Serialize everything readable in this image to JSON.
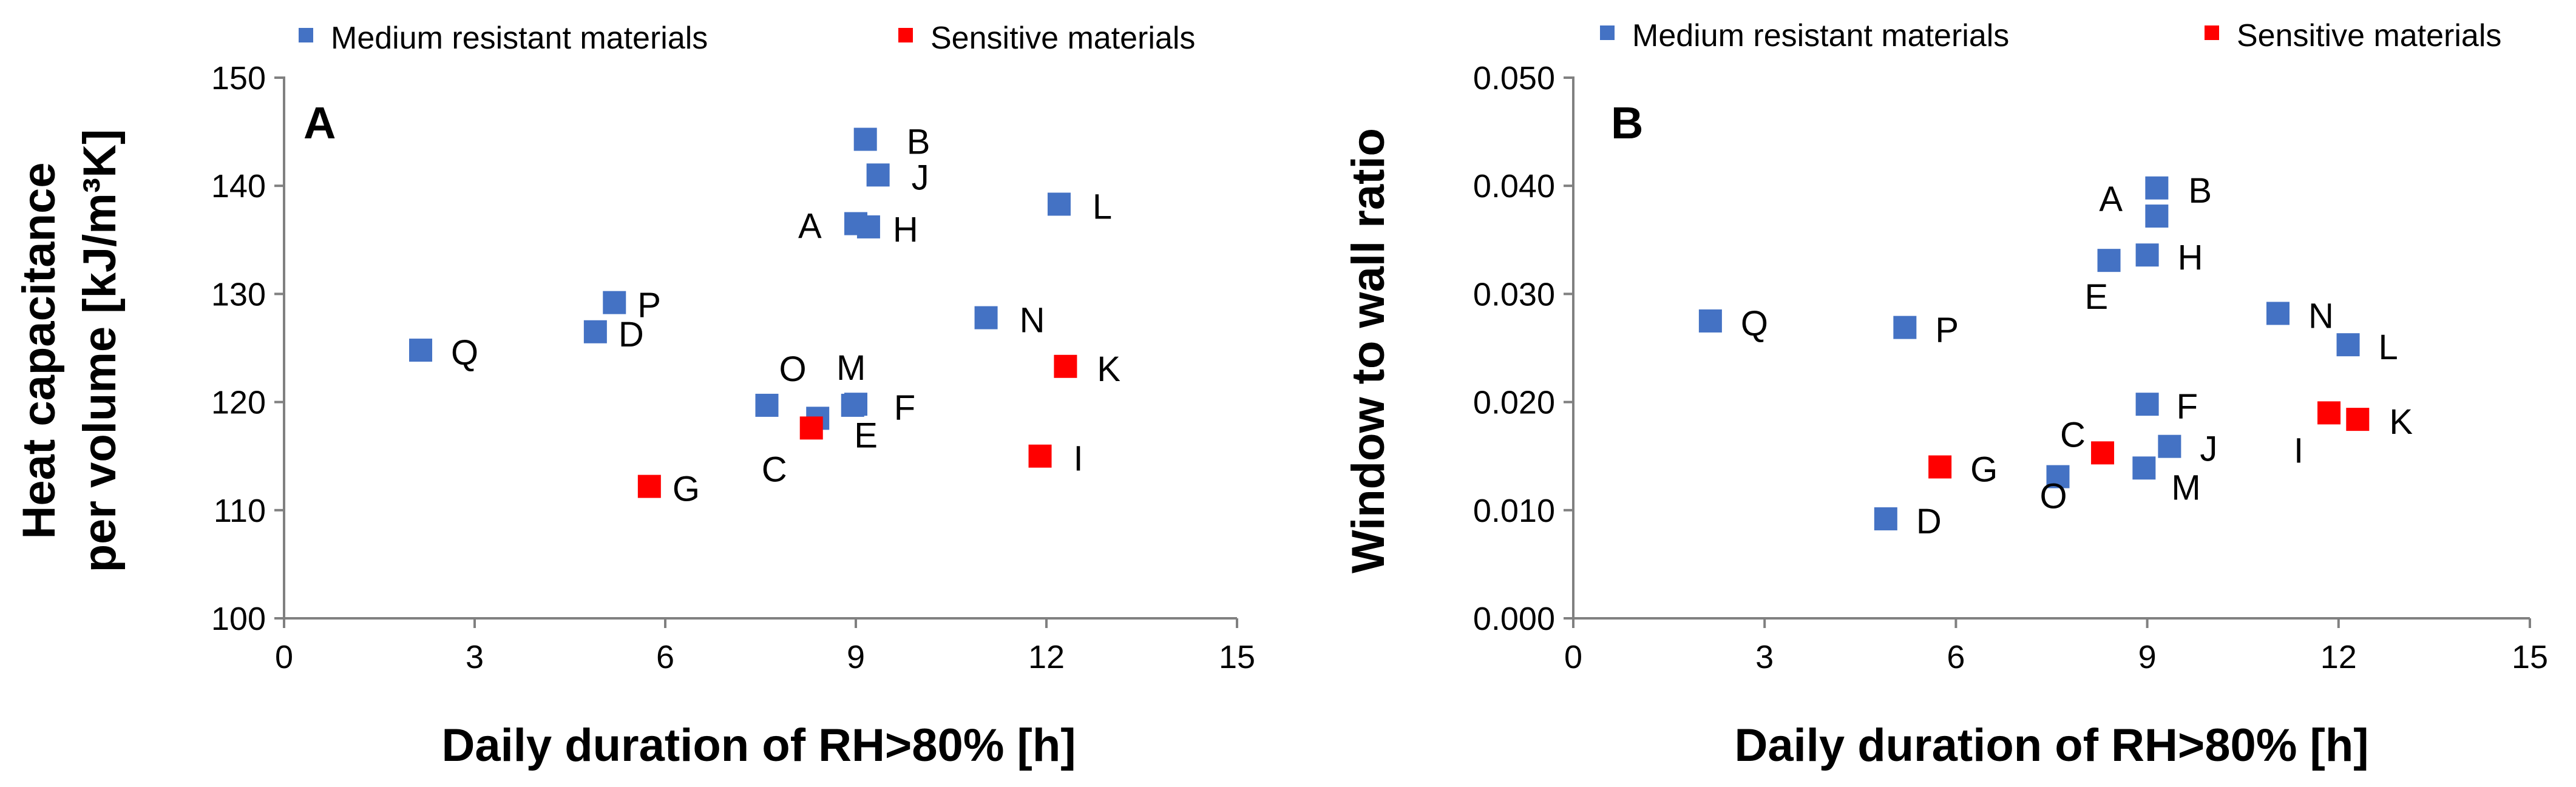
{
  "chart_data": [
    {
      "type": "scatter",
      "panel_letter": "A",
      "xlabel": "Daily duration of RH>80% [h]",
      "ylabel_lines": [
        "Heat capacitance",
        "per volume [kJ/m³K]"
      ],
      "xlim": [
        0,
        15
      ],
      "ylim": [
        100,
        150
      ],
      "xticks": [
        0,
        3,
        6,
        9,
        12,
        15
      ],
      "yticks": [
        100,
        110,
        120,
        130,
        140,
        150
      ],
      "yticks_text": [
        "100",
        "110",
        "120",
        "130",
        "140",
        "150"
      ],
      "grid": false,
      "legend_position": "top",
      "series": [
        {
          "name": "Medium resistant materials",
          "color": "#4472C4",
          "points": [
            {
              "label": "A",
              "x": 9.0,
              "y": 136.5
            },
            {
              "label": "B",
              "x": 9.15,
              "y": 144.3
            },
            {
              "label": "D",
              "x": 4.9,
              "y": 126.5
            },
            {
              "label": "E",
              "x": 8.4,
              "y": 118.5
            },
            {
              "label": "F",
              "x": 8.95,
              "y": 119.7
            },
            {
              "label": "H",
              "x": 9.2,
              "y": 136.2
            },
            {
              "label": "J",
              "x": 9.35,
              "y": 141.0
            },
            {
              "label": "L",
              "x": 12.2,
              "y": 138.3
            },
            {
              "label": "M",
              "x": 9.0,
              "y": 119.8
            },
            {
              "label": "N",
              "x": 11.05,
              "y": 127.8
            },
            {
              "label": "O",
              "x": 7.6,
              "y": 119.7
            },
            {
              "label": "P",
              "x": 5.2,
              "y": 129.2
            },
            {
              "label": "Q",
              "x": 2.15,
              "y": 124.8
            }
          ]
        },
        {
          "name": "Sensitive materials",
          "color": "#FF0000",
          "points": [
            {
              "label": "C",
              "x": 8.3,
              "y": 117.6
            },
            {
              "label": "G",
              "x": 5.75,
              "y": 112.2
            },
            {
              "label": "I",
              "x": 11.9,
              "y": 115.0
            },
            {
              "label": "K",
              "x": 12.3,
              "y": 123.3
            }
          ]
        }
      ]
    },
    {
      "type": "scatter",
      "panel_letter": "B",
      "xlabel": "Daily duration of RH>80% [h]",
      "ylabel_lines": [
        "Window to wall ratio"
      ],
      "xlim": [
        0,
        15
      ],
      "ylim": [
        0,
        0.05
      ],
      "xticks": [
        0,
        3,
        6,
        9,
        12,
        15
      ],
      "yticks": [
        0,
        0.01,
        0.02,
        0.03,
        0.04,
        0.05
      ],
      "yticks_text": [
        "0.000",
        "0.010",
        "0.020",
        "0.030",
        "0.040",
        "0.050"
      ],
      "grid": false,
      "legend_position": "top",
      "series": [
        {
          "name": "Medium resistant materials",
          "color": "#4472C4",
          "points": [
            {
              "label": "A",
              "x": 9.15,
              "y": 0.0372
            },
            {
              "label": "B",
              "x": 9.15,
              "y": 0.0398
            },
            {
              "label": "D",
              "x": 4.9,
              "y": 0.0092
            },
            {
              "label": "E",
              "x": 8.4,
              "y": 0.0331
            },
            {
              "label": "F",
              "x": 9.0,
              "y": 0.0198
            },
            {
              "label": "H",
              "x": 9.0,
              "y": 0.0336
            },
            {
              "label": "J",
              "x": 9.35,
              "y": 0.0159
            },
            {
              "label": "L",
              "x": 12.15,
              "y": 0.0253
            },
            {
              "label": "M",
              "x": 8.95,
              "y": 0.0139
            },
            {
              "label": "N",
              "x": 11.05,
              "y": 0.0282
            },
            {
              "label": "O",
              "x": 7.6,
              "y": 0.0131
            },
            {
              "label": "P",
              "x": 5.2,
              "y": 0.0269
            },
            {
              "label": "Q",
              "x": 2.15,
              "y": 0.0275
            }
          ]
        },
        {
          "name": "Sensitive materials",
          "color": "#FF0000",
          "points": [
            {
              "label": "C",
              "x": 8.3,
              "y": 0.0153
            },
            {
              "label": "G",
              "x": 5.75,
              "y": 0.014
            },
            {
              "label": "I",
              "x": 11.85,
              "y": 0.019
            },
            {
              "label": "K",
              "x": 12.3,
              "y": 0.0184
            }
          ]
        }
      ]
    }
  ]
}
